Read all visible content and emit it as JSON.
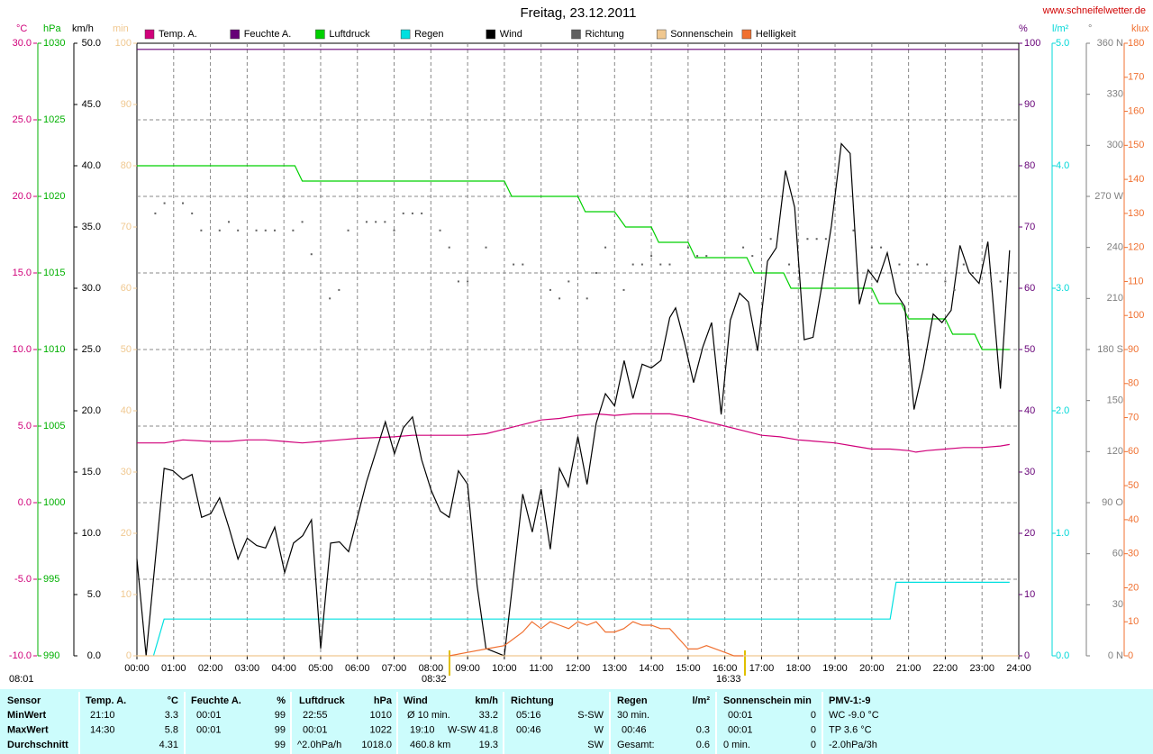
{
  "chart_data": {
    "type": "line",
    "title": "Freitag, 23.12.2011",
    "site": "www.schneifelwetter.de",
    "annotations": [
      "08:32",
      "16:33",
      "08:01"
    ],
    "xlim": [
      0,
      24
    ],
    "xticks": [
      {
        "value": 0,
        "label": "00:00"
      },
      {
        "value": 1,
        "label": "01:00"
      },
      {
        "value": 2,
        "label": "02:00"
      },
      {
        "value": 3,
        "label": "03:00"
      },
      {
        "value": 4,
        "label": "04:00"
      },
      {
        "value": 5,
        "label": "05:00"
      },
      {
        "value": 6,
        "label": "06:00"
      },
      {
        "value": 7,
        "label": "07:00"
      },
      {
        "value": 8,
        "label": "08:00"
      },
      {
        "value": 9,
        "label": "09:00"
      },
      {
        "value": 10,
        "label": "10:00"
      },
      {
        "value": 11,
        "label": "11:00"
      },
      {
        "value": 12,
        "label": "12:00"
      },
      {
        "value": 13,
        "label": "13:00"
      },
      {
        "value": 14,
        "label": "14:00"
      },
      {
        "value": 15,
        "label": "15:00"
      },
      {
        "value": 16,
        "label": "16:00"
      },
      {
        "value": 17,
        "label": "17:00"
      },
      {
        "value": 18,
        "label": "18:00"
      },
      {
        "value": 19,
        "label": "19:00"
      },
      {
        "value": 20,
        "label": "20:00"
      },
      {
        "value": 21,
        "label": "21:00"
      },
      {
        "value": 22,
        "label": "22:00"
      },
      {
        "value": 23,
        "label": "23:00"
      },
      {
        "value": 24,
        "label": "24:00"
      }
    ],
    "grid": true,
    "axes": [
      {
        "unit": "°C",
        "color": "#d0007a",
        "lim": [
          -10,
          30
        ],
        "grid": true,
        "ticks": [
          {
            "value": -10,
            "label": "-10.0"
          },
          {
            "value": -5,
            "label": "-5.0"
          },
          {
            "value": 0,
            "label": "0.0"
          },
          {
            "value": 5,
            "label": "5.0"
          },
          {
            "value": 10,
            "label": "10.0"
          },
          {
            "value": 15,
            "label": "15.0"
          },
          {
            "value": 20,
            "label": "20.0"
          },
          {
            "value": 25,
            "label": "25.0"
          },
          {
            "value": 30,
            "label": "30.0"
          }
        ]
      },
      {
        "unit": "hPa",
        "color": "#00b000",
        "lim": [
          990,
          1030
        ],
        "ticks": [
          990,
          995,
          1000,
          1005,
          1010,
          1015,
          1020,
          1025,
          1030
        ]
      },
      {
        "unit": "km/h",
        "color": "#000000",
        "lim": [
          0,
          50
        ],
        "ticks": [
          {
            "value": 0,
            "label": "0.0"
          },
          {
            "value": 5,
            "label": "5.0"
          },
          {
            "value": 10,
            "label": "10.0"
          },
          {
            "value": 15,
            "label": "15.0"
          },
          {
            "value": 20,
            "label": "20.0"
          },
          {
            "value": 25,
            "label": "25.0"
          },
          {
            "value": 30,
            "label": "30.0"
          },
          {
            "value": 35,
            "label": "35.0"
          },
          {
            "value": 40,
            "label": "40.0"
          },
          {
            "value": 45,
            "label": "45.0"
          },
          {
            "value": 50,
            "label": "50.0"
          }
        ]
      },
      {
        "unit": "min",
        "color": "#f0c890",
        "lim": [
          0,
          100
        ],
        "ticks": [
          0,
          10,
          20,
          30,
          40,
          50,
          60,
          70,
          80,
          90,
          100
        ]
      },
      {
        "unit": "%",
        "color": "#660077",
        "lim": [
          0,
          100
        ],
        "ticks": [
          0,
          10,
          20,
          30,
          40,
          50,
          60,
          70,
          80,
          90,
          100
        ]
      },
      {
        "unit": "l/m²",
        "color": "#00d8d8",
        "lim": [
          0,
          5
        ],
        "ticks": [
          {
            "value": 0,
            "label": "0.0"
          },
          {
            "value": 1,
            "label": "1.0"
          },
          {
            "value": 2,
            "label": "2.0"
          },
          {
            "value": 3,
            "label": "3.0"
          },
          {
            "value": 4,
            "label": "4.0"
          },
          {
            "value": 5,
            "label": "5.0"
          }
        ]
      },
      {
        "unit": "°",
        "color": "#808080",
        "lim": [
          0,
          360
        ],
        "ticks": [
          {
            "value": 0,
            "label": "0 N"
          },
          30,
          60,
          {
            "value": 90,
            "label": "90 O"
          },
          120,
          150,
          {
            "value": 180,
            "label": "180 S"
          },
          210,
          240,
          {
            "value": 270,
            "label": "270 W"
          },
          300,
          330,
          {
            "value": 360,
            "label": "360 N"
          }
        ]
      },
      {
        "unit": "klux",
        "color": "#f07030",
        "lim": [
          0,
          180
        ],
        "ticks": [
          0,
          10,
          20,
          30,
          40,
          50,
          60,
          70,
          80,
          90,
          100,
          110,
          120,
          130,
          140,
          150,
          160,
          170,
          180
        ]
      }
    ],
    "series": [
      {
        "name": "Temp. A.",
        "color": "#d0007a",
        "axis": 0,
        "style": "line",
        "x": [
          0,
          0.75,
          1.25,
          2,
          2.5,
          3,
          3.5,
          4,
          4.5,
          5,
          5.5,
          6,
          7,
          7.5,
          8,
          9,
          9.5,
          10,
          10.5,
          11,
          11.5,
          12,
          12.5,
          13,
          13.5,
          14,
          14.5,
          15,
          15.5,
          16,
          16.5,
          17,
          17.5,
          18,
          18.5,
          19,
          19.5,
          20,
          20.5,
          21,
          21.2,
          21.5,
          22,
          22.5,
          23,
          23.5,
          23.75
        ],
        "values": [
          3.9,
          3.9,
          4.1,
          4.0,
          4.0,
          4.1,
          4.1,
          4.0,
          3.9,
          4.0,
          4.1,
          4.2,
          4.3,
          4.4,
          4.4,
          4.4,
          4.5,
          4.8,
          5.1,
          5.4,
          5.5,
          5.7,
          5.8,
          5.7,
          5.8,
          5.8,
          5.8,
          5.6,
          5.3,
          5.0,
          4.7,
          4.4,
          4.3,
          4.1,
          4.0,
          3.9,
          3.7,
          3.5,
          3.5,
          3.4,
          3.3,
          3.4,
          3.5,
          3.6,
          3.6,
          3.7,
          3.8
        ]
      },
      {
        "name": "Feuchte A.",
        "color": "#660077",
        "axis": 4,
        "style": "line",
        "x": [
          0,
          24
        ],
        "values": [
          99,
          99
        ]
      },
      {
        "name": "Luftdruck",
        "color": "#00d000",
        "axis": 1,
        "style": "line",
        "x": [
          0,
          4.3,
          4.5,
          10.0,
          10.2,
          12.0,
          12.2,
          13.0,
          13.3,
          14.0,
          14.2,
          15.0,
          15.2,
          16.6,
          16.8,
          17.6,
          17.8,
          20.0,
          20.2,
          20.8,
          21.0,
          22.0,
          22.2,
          22.8,
          23.0,
          23.75
        ],
        "values": [
          1022,
          1022,
          1021,
          1021,
          1020,
          1020,
          1019,
          1019,
          1018,
          1018,
          1017,
          1017,
          1016,
          1016,
          1015,
          1015,
          1014,
          1014,
          1013,
          1013,
          1012,
          1012,
          1011,
          1011,
          1010,
          1010
        ]
      },
      {
        "name": "Regen",
        "color": "#00e0e0",
        "axis": 5,
        "style": "line",
        "x": [
          0.45,
          0.74,
          20.5,
          20.66,
          23.75
        ],
        "values": [
          0,
          0.3,
          0.3,
          0.6,
          0.6
        ]
      },
      {
        "name": "Wind",
        "color": "#000000",
        "axis": 2,
        "style": "line",
        "x": [
          0,
          0.25,
          0.74,
          0.98,
          1.25,
          1.5,
          1.76,
          2.01,
          2.25,
          2.5,
          2.75,
          3.0,
          3.26,
          3.5,
          3.75,
          4.02,
          4.26,
          4.51,
          4.75,
          5.0,
          5.27,
          5.51,
          5.76,
          6.0,
          6.25,
          6.52,
          6.76,
          7.01,
          7.25,
          7.5,
          7.75,
          8.01,
          8.26,
          8.5,
          8.75,
          9.0,
          9.26,
          9.5,
          10.0,
          10.25,
          10.5,
          10.76,
          11.0,
          11.25,
          11.5,
          11.74,
          12.0,
          12.25,
          12.5,
          12.75,
          13.0,
          13.26,
          13.5,
          13.75,
          14.0,
          14.26,
          14.5,
          14.66,
          14.9,
          15.15,
          15.4,
          15.64,
          15.9,
          16.15,
          16.4,
          16.64,
          16.89,
          17.16,
          17.4,
          17.65,
          17.9,
          18.16,
          18.4,
          18.65,
          18.9,
          19.17,
          19.41,
          19.66,
          19.9,
          20.15,
          20.42,
          20.66,
          20.9,
          21.15,
          21.4,
          21.67,
          21.91,
          22.16,
          22.4,
          22.65,
          22.92,
          23.16,
          23.5,
          23.75
        ],
        "values": [
          7.9,
          0,
          15.3,
          15.1,
          14.4,
          14.8,
          11.3,
          11.6,
          12.9,
          10.5,
          7.9,
          9.6,
          9.0,
          8.8,
          10.5,
          6.8,
          9.2,
          9.8,
          11.1,
          0.6,
          9.2,
          9.3,
          8.5,
          11.3,
          14.2,
          16.8,
          19.1,
          16.5,
          18.6,
          19.5,
          16.0,
          13.5,
          11.8,
          11.3,
          15.1,
          14.0,
          5.7,
          0.6,
          0,
          6.5,
          13.2,
          10.1,
          13.6,
          8.7,
          15.3,
          13.8,
          17.9,
          14.0,
          19.0,
          21.4,
          20.4,
          24.1,
          21.0,
          23.8,
          23.5,
          24.1,
          27.6,
          28.4,
          25.6,
          22.3,
          25.2,
          27.2,
          19.7,
          27.4,
          29.6,
          28.9,
          24.9,
          32.2,
          33.3,
          39.6,
          36.6,
          25.8,
          26.0,
          30.4,
          35.1,
          41.8,
          41.0,
          28.7,
          31.5,
          30.5,
          32.9,
          29.6,
          28.5,
          20.1,
          23.4,
          27.9,
          27.2,
          28.2,
          33.5,
          31.3,
          30.4,
          33.8,
          21.8,
          33.1
        ]
      },
      {
        "name": "Richtung",
        "color": "#606060",
        "axis": 6,
        "style": "dots",
        "x": [
          0.5,
          0.75,
          1.25,
          1.5,
          1.75,
          2.25,
          2.5,
          2.75,
          3.25,
          3.5,
          3.75,
          4.25,
          4.5,
          4.75,
          5.25,
          5.5,
          5.75,
          6.25,
          6.5,
          6.75,
          7,
          7.25,
          7.5,
          7.75,
          8.25,
          8.5,
          8.75,
          9,
          9.5,
          10.25,
          10.5,
          11.25,
          11.5,
          11.75,
          12.25,
          12.5,
          12.75,
          13.25,
          13.5,
          13.75,
          14,
          14.25,
          14.5,
          15,
          15.25,
          15.5,
          16.5,
          16.75,
          17.25,
          17.75,
          18.25,
          18.5,
          18.75,
          19.5,
          20,
          20.25,
          20.75,
          21.25,
          21.5,
          22,
          22.25,
          22.5,
          22.75,
          23.25,
          23.5
        ],
        "values": [
          260,
          266,
          266,
          260,
          250,
          250,
          255,
          250,
          250,
          250,
          250,
          250,
          255,
          236,
          210,
          215,
          250,
          255,
          255,
          255,
          250,
          260,
          260,
          260,
          250,
          240,
          220,
          220,
          240,
          230,
          230,
          215,
          210,
          220,
          210,
          225,
          240,
          215,
          230,
          230,
          235,
          230,
          230,
          240,
          235,
          235,
          240,
          235,
          245,
          230,
          245,
          245,
          245,
          250,
          240,
          240,
          230,
          230,
          230,
          220,
          215,
          230,
          225,
          220,
          220
        ]
      },
      {
        "name": "Sonnenschein",
        "color": "#f0c890",
        "axis": 3,
        "style": "line",
        "x": [
          0,
          24
        ],
        "values": [
          0,
          0
        ]
      },
      {
        "name": "Helligkeit",
        "color": "#f07030",
        "axis": 7,
        "style": "line",
        "x": [
          8.5,
          9.0,
          9.5,
          10.0,
          10.25,
          10.5,
          10.75,
          11.0,
          11.25,
          11.5,
          11.75,
          12.0,
          12.25,
          12.5,
          12.75,
          13.0,
          13.25,
          13.5,
          13.75,
          14.0,
          14.25,
          14.5,
          14.75,
          15.0,
          15.25,
          15.5,
          15.75,
          16.0,
          16.25,
          16.5
        ],
        "values": [
          0,
          1,
          2,
          3,
          5,
          7,
          10,
          8,
          10,
          9,
          8,
          10,
          9,
          10,
          7,
          7,
          8,
          10,
          9,
          9,
          8,
          8,
          5,
          2,
          2,
          3,
          2,
          1,
          0,
          0
        ]
      }
    ]
  },
  "table": {
    "columns": [
      "Sensor",
      "Temp. A.",
      "°C",
      "Feuchte A.",
      "%",
      "Luftdruck",
      "hPa",
      "Wind",
      "km/h",
      "Richtung",
      "Regen",
      "l/m²",
      "Sonnenschein min",
      "PMV-1:-9"
    ],
    "rows": [
      {
        "label": "MinWert",
        "cells": [
          "21:10",
          "3.3",
          "00:01",
          "99",
          "22:55",
          "1010",
          "Ø 10 min.",
          "33.2",
          "05:16",
          "S-SW",
          "30 min.",
          "00:01",
          "0",
          "WC -9.0 °C"
        ]
      },
      {
        "label": "MaxWert",
        "cells": [
          "14:30",
          "5.8",
          "00:01",
          "99",
          "00:01",
          "1022",
          "19:10",
          "W-SW 41.8",
          "00:46",
          "W",
          "00:46",
          "0.3",
          "00:01",
          "0",
          "TP 3.6 °C"
        ]
      },
      {
        "label": "Durchschnitt",
        "cells": [
          "4.31",
          "99",
          "^2.0hPa/h",
          "1018.0",
          "460.8 km",
          "19.3",
          "SW",
          "Gesamt:",
          "0.6",
          "0 min.",
          "0",
          "-2.0hPa/3h"
        ]
      }
    ]
  }
}
